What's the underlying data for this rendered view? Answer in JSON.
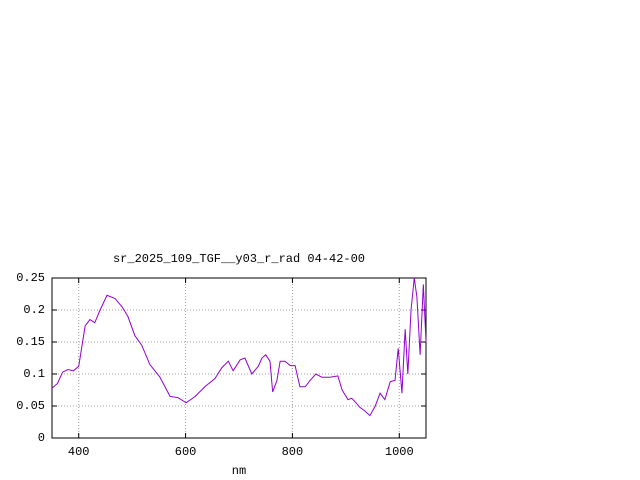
{
  "chart_data": {
    "type": "line",
    "title": "sr_2025_109_TGF__y03_r_rad 04-42-00",
    "x_label": "nm",
    "series": [
      {
        "color": "#9400d3",
        "x": [
          350,
          360,
          370,
          380,
          390,
          400,
          412,
          421,
          430,
          440,
          453,
          468,
          481,
          492,
          505,
          518,
          533,
          552,
          571,
          586,
          601,
          618,
          636,
          655,
          668,
          680,
          689,
          702,
          711,
          724,
          736,
          743,
          750,
          758,
          763,
          771,
          777,
          786,
          796,
          805,
          814,
          824,
          833,
          844,
          855,
          870,
          885,
          893,
          904,
          911,
          919,
          926,
          936,
          945,
          955,
          964,
          973,
          983,
          992,
          998,
          1005,
          1011,
          1016,
          1022,
          1028,
          1033,
          1039,
          1045,
          1050
        ],
        "values": [
          0.078,
          0.085,
          0.103,
          0.107,
          0.105,
          0.112,
          0.175,
          0.185,
          0.18,
          0.2,
          0.223,
          0.218,
          0.205,
          0.19,
          0.16,
          0.145,
          0.115,
          0.095,
          0.065,
          0.063,
          0.055,
          0.065,
          0.08,
          0.093,
          0.11,
          0.12,
          0.105,
          0.122,
          0.125,
          0.1,
          0.112,
          0.125,
          0.13,
          0.12,
          0.072,
          0.09,
          0.12,
          0.12,
          0.113,
          0.113,
          0.08,
          0.08,
          0.09,
          0.1,
          0.095,
          0.095,
          0.097,
          0.075,
          0.06,
          0.062,
          0.055,
          0.048,
          0.042,
          0.035,
          0.05,
          0.07,
          0.06,
          0.088,
          0.09,
          0.14,
          0.07,
          0.17,
          0.1,
          0.2,
          0.25,
          0.22,
          0.13,
          0.24,
          0.15
        ]
      }
    ],
    "xlim": [
      350,
      1050
    ],
    "xticks": [
      400,
      600,
      800,
      1000
    ],
    "ylim": [
      0,
      0.25
    ],
    "yticks": [
      0,
      0.05,
      0.1,
      0.15,
      0.2,
      0.25
    ],
    "grid": true
  }
}
